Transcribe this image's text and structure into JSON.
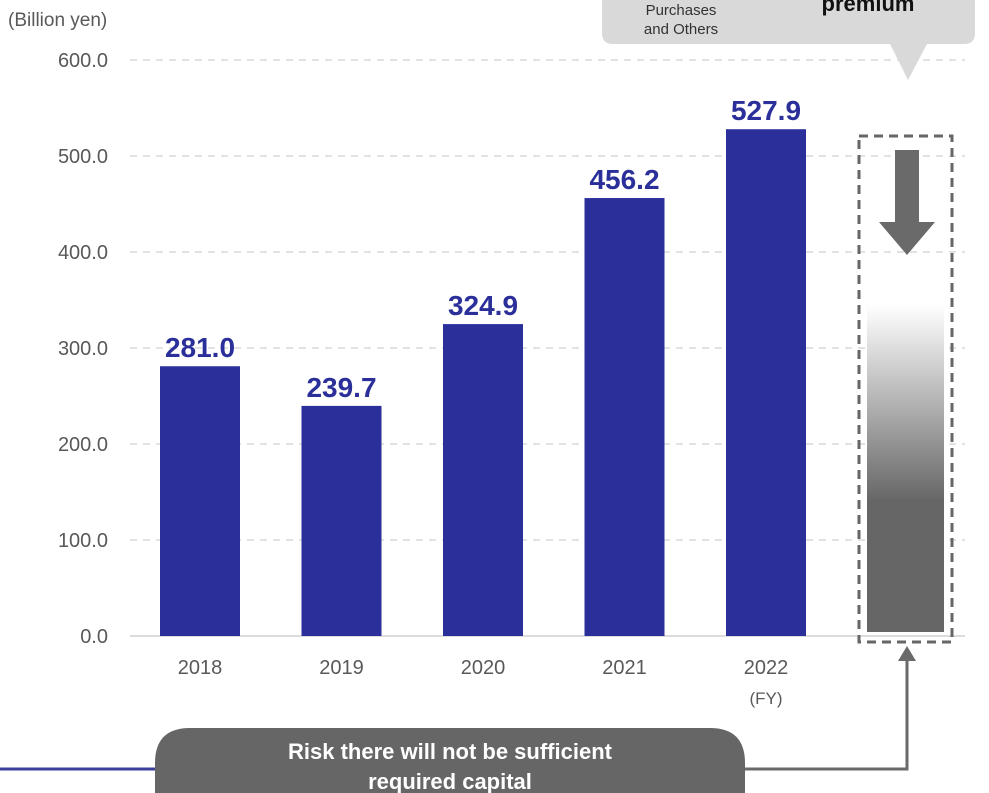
{
  "chart_data": {
    "type": "bar",
    "unit_label": "(Billion yen)",
    "categories": [
      "2018",
      "2019",
      "2020",
      "2021",
      "2022"
    ],
    "fy_label": "(FY)",
    "values": [
      281.0,
      239.7,
      324.9,
      456.2,
      527.9
    ],
    "data_labels": [
      "281.0",
      "239.7",
      "324.9",
      "456.2",
      "527.9"
    ],
    "ylim": [
      0,
      600
    ],
    "y_ticks": [
      {
        "value": 0,
        "label": "0.0"
      },
      {
        "value": 100,
        "label": "100.0"
      },
      {
        "value": 200,
        "label": "200.0"
      },
      {
        "value": 300,
        "label": "300.0"
      },
      {
        "value": 400,
        "label": "400.0"
      },
      {
        "value": 500,
        "label": "500.0"
      },
      {
        "value": 600,
        "label": "600.0"
      }
    ],
    "grid": true,
    "bar_color": "#2b2f9a",
    "label_color": "#2b2f9a"
  },
  "callout": {
    "line1": "Purchases",
    "line2": "and Others",
    "big_text": "premium"
  },
  "risk_box": {
    "line1": "Risk there will not be sufficient",
    "line2": "required capital"
  }
}
